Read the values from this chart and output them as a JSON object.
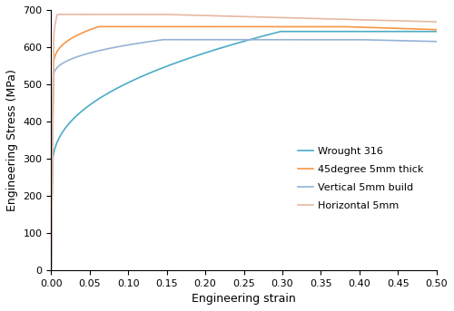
{
  "xlabel": "Engineering strain",
  "ylabel": "Engineering Stress (MPa)",
  "xlim": [
    0,
    0.5
  ],
  "ylim": [
    0,
    700
  ],
  "yticks": [
    0,
    100,
    200,
    300,
    400,
    500,
    600,
    700
  ],
  "xticks": [
    0,
    0.05,
    0.1,
    0.15,
    0.2,
    0.25,
    0.3,
    0.35,
    0.4,
    0.45,
    0.5
  ],
  "legend": [
    {
      "label": "Wrought 316",
      "color": "#4bacc6"
    },
    {
      "label": "45degree 5mm thick",
      "color": "#f79646"
    },
    {
      "label": "Vertical 5mm build",
      "color": "#95b3d7"
    },
    {
      "label": "Horizontal 5mm",
      "color": "#e6b8a2"
    }
  ]
}
